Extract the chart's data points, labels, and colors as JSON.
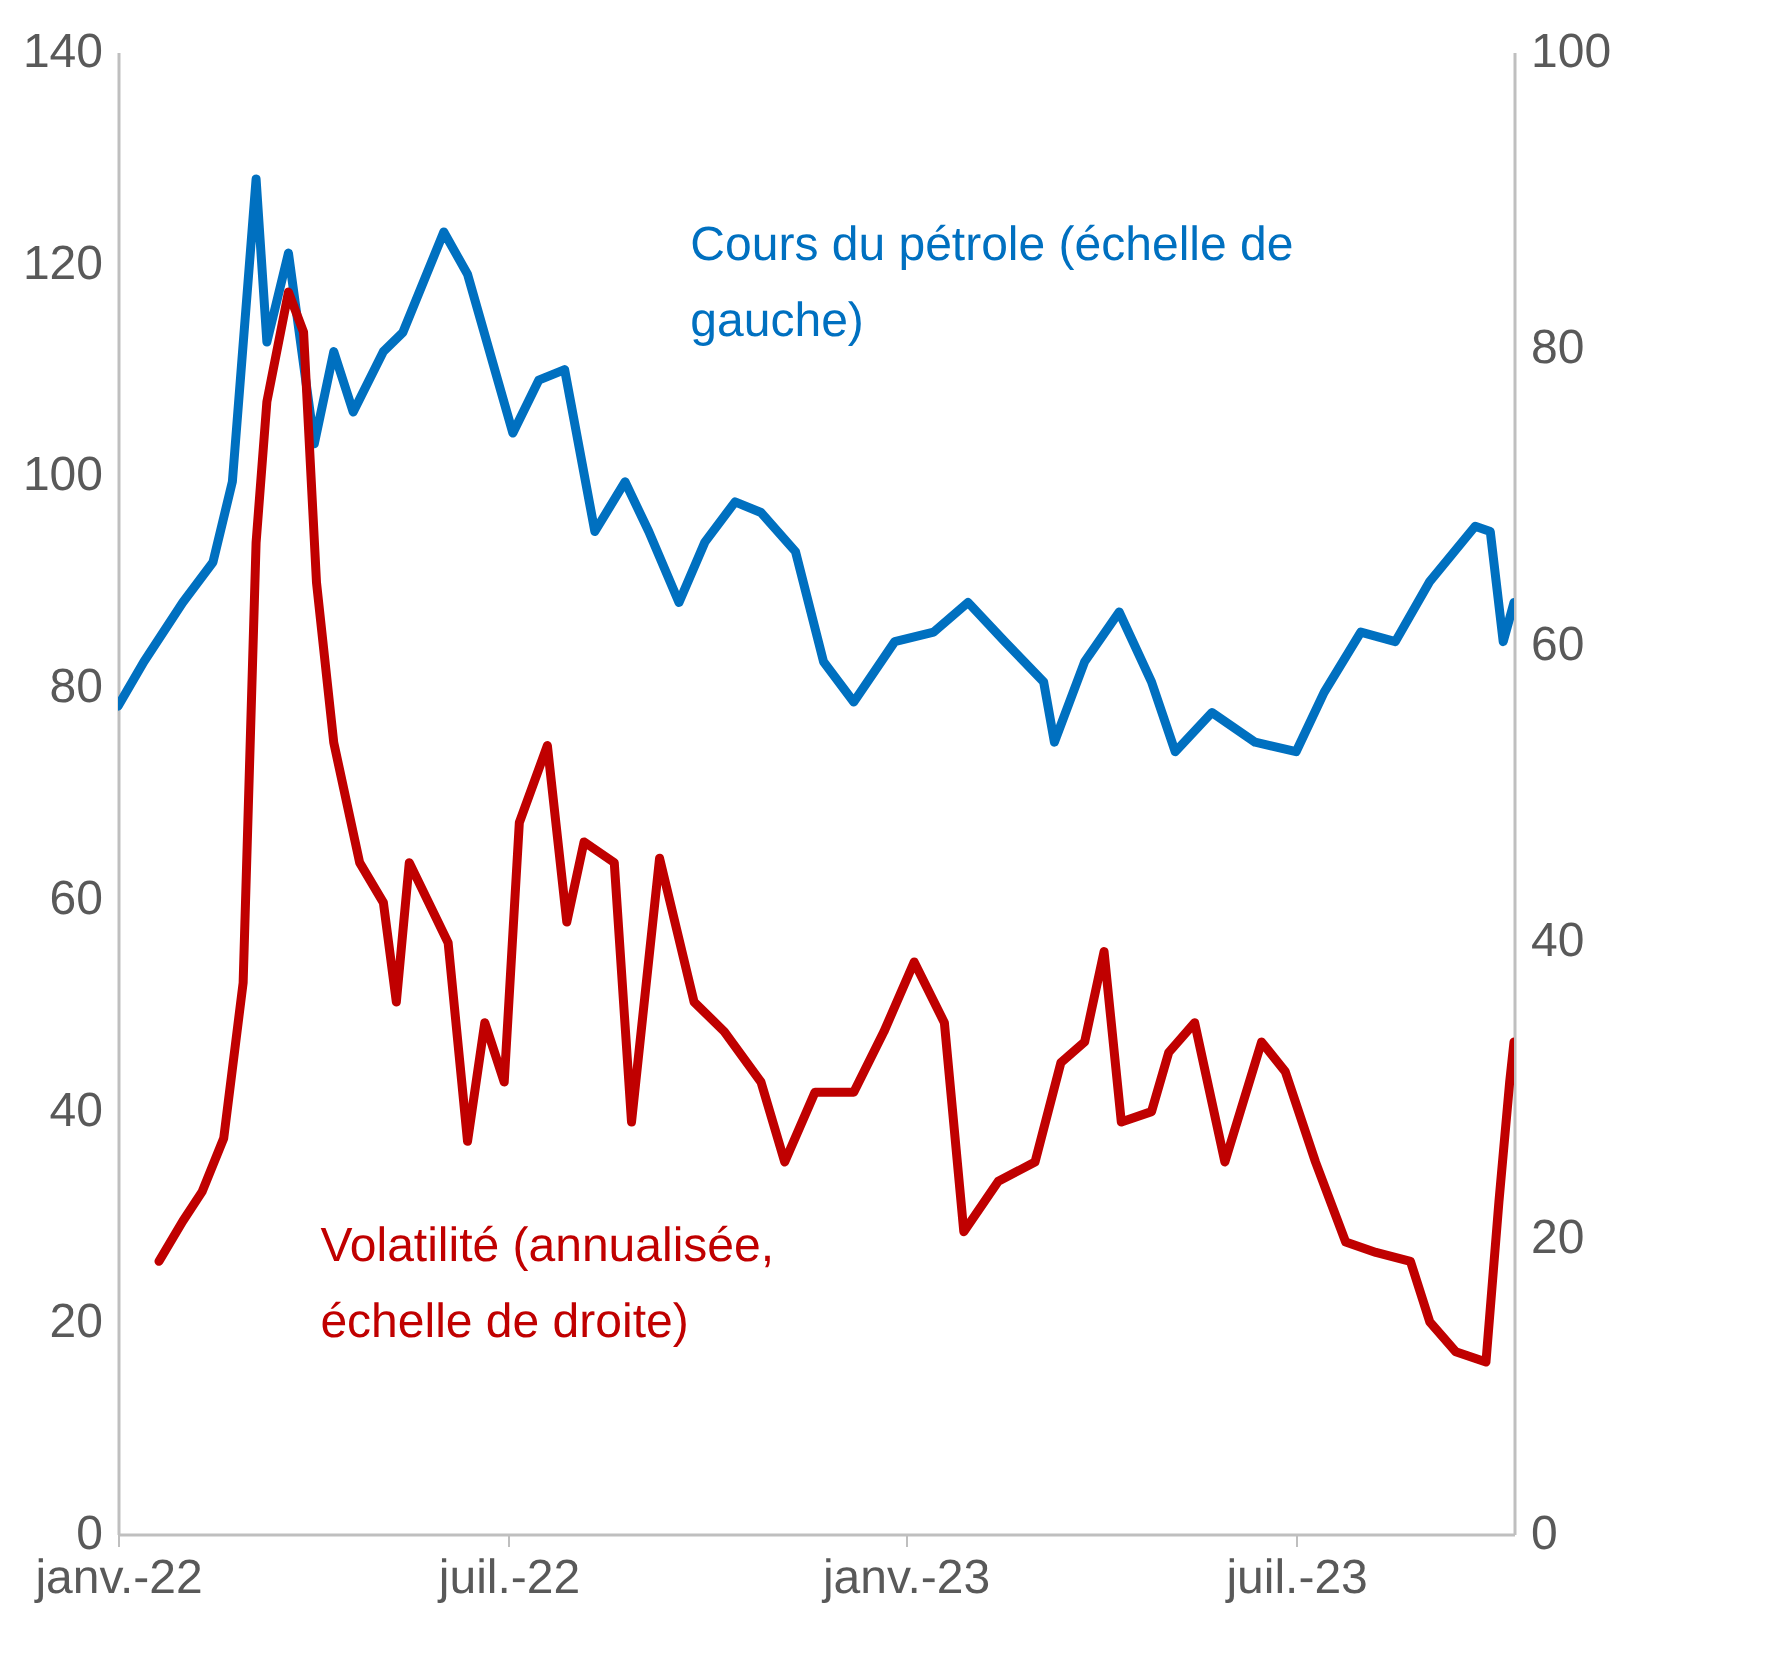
{
  "chart_data": {
    "type": "line",
    "xlim": [
      "2022-01-01",
      "2023-10-10"
    ],
    "xticks": [
      {
        "value": "2022-01-01",
        "label": "janv.-22"
      },
      {
        "value": "2022-07-01",
        "label": "juil.-22"
      },
      {
        "value": "2023-01-01",
        "label": "janv.-23"
      },
      {
        "value": "2023-07-01",
        "label": "juil.-23"
      }
    ],
    "ylim": [
      0,
      140
    ],
    "yticks": [
      0,
      20,
      40,
      60,
      80,
      100,
      120,
      140
    ],
    "y2lim": [
      0,
      100
    ],
    "y2ticks": [
      0,
      20,
      40,
      60,
      80,
      100
    ],
    "series": [
      {
        "name": "Cours du pétrole (échelle de gauche)",
        "color": "#0070c0",
        "x": [
          "2022-01-01",
          "2022-01-13",
          "2022-01-31",
          "2022-02-14",
          "2022-02-23",
          "2022-03-06",
          "2022-03-11",
          "2022-03-21",
          "2022-04-02",
          "2022-04-11",
          "2022-04-20",
          "2022-05-04",
          "2022-05-13",
          "2022-06-01",
          "2022-06-12",
          "2022-07-03",
          "2022-07-15",
          "2022-07-27",
          "2022-08-10",
          "2022-08-24",
          "2022-09-04",
          "2022-09-18",
          "2022-09-30",
          "2022-10-14",
          "2022-10-26",
          "2022-11-11",
          "2022-11-24",
          "2022-12-08",
          "2022-12-27",
          "2023-01-14",
          "2023-01-30",
          "2023-02-16",
          "2023-03-06",
          "2023-03-11",
          "2023-03-25",
          "2023-04-10",
          "2023-04-25",
          "2023-05-06",
          "2023-05-23",
          "2023-06-12",
          "2023-07-01",
          "2023-07-14",
          "2023-07-31",
          "2023-08-16",
          "2023-09-01",
          "2023-09-22",
          "2023-09-29",
          "2023-10-05",
          "2023-10-10"
        ],
        "values": [
          78.2,
          82.4,
          88,
          91.8,
          99.4,
          128,
          112.6,
          121,
          103,
          111.7,
          106,
          111.7,
          113.5,
          123,
          119,
          104,
          109,
          110,
          94.7,
          99.4,
          94.7,
          88,
          93.7,
          97.5,
          96.5,
          92.8,
          82.4,
          78.6,
          84.3,
          85.2,
          88,
          84.3,
          80.5,
          74.8,
          82.4,
          87.1,
          80.5,
          73.9,
          77.6,
          74.8,
          73.9,
          79.5,
          85.2,
          84.3,
          90,
          95.2,
          94.7,
          84.3,
          88
        ]
      },
      {
        "name": "Volatilité (annualisée, échelle de droite)",
        "color": "#c00000",
        "axis": "y2",
        "x": [
          "2022-01-20",
          "2022-01-31",
          "2022-02-09",
          "2022-02-19",
          "2022-02-28",
          "2022-03-06",
          "2022-03-11",
          "2022-03-21",
          "2022-03-28",
          "2022-04-03",
          "2022-04-11",
          "2022-04-23",
          "2022-05-04",
          "2022-05-10",
          "2022-05-16",
          "2022-06-03",
          "2022-06-12",
          "2022-06-20",
          "2022-06-29",
          "2022-07-06",
          "2022-07-19",
          "2022-07-28",
          "2022-08-05",
          "2022-08-19",
          "2022-08-27",
          "2022-09-09",
          "2022-09-25",
          "2022-10-09",
          "2022-10-26",
          "2022-11-06",
          "2022-11-20",
          "2022-12-08",
          "2022-12-22",
          "2023-01-05",
          "2023-01-19",
          "2023-01-28",
          "2023-02-13",
          "2023-03-02",
          "2023-03-14",
          "2023-03-25",
          "2023-04-03",
          "2023-04-11",
          "2023-04-25",
          "2023-05-03",
          "2023-05-15",
          "2023-05-29",
          "2023-06-15",
          "2023-06-26",
          "2023-07-10",
          "2023-07-24",
          "2023-08-07",
          "2023-08-23",
          "2023-09-01",
          "2023-09-13",
          "2023-09-27",
          "2023-10-03",
          "2023-10-08",
          "2023-10-10"
        ],
        "values": [
          18.4,
          21.1,
          23.1,
          26.7,
          37.2,
          66.9,
          76.4,
          83.8,
          81.1,
          64.2,
          53.4,
          45.3,
          42.6,
          35.9,
          45.3,
          39.9,
          26.5,
          34.5,
          30.5,
          48,
          53.2,
          41.3,
          46.7,
          45.3,
          27.8,
          45.6,
          35.9,
          33.9,
          30.5,
          25.1,
          29.8,
          29.8,
          33.9,
          38.6,
          34.5,
          20.4,
          23.8,
          25.1,
          31.8,
          33.2,
          39.3,
          27.8,
          28.5,
          32.5,
          34.5,
          25.1,
          33.2,
          31.2,
          25.1,
          19.7,
          19,
          18.4,
          14.3,
          12.3,
          11.6,
          22.4,
          30.5,
          33.2
        ]
      }
    ]
  }
}
